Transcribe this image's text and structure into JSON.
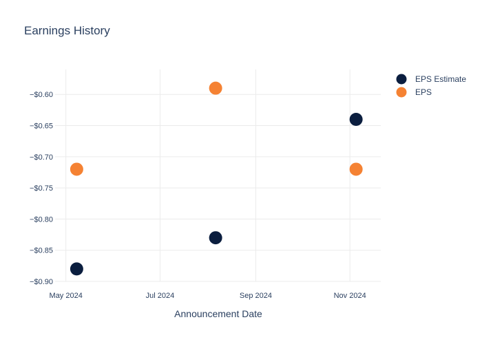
{
  "chart_data": {
    "type": "scatter",
    "title": "Earnings History",
    "xlabel": "Announcement Date",
    "ylabel": "",
    "x_ticks": [
      {
        "label": "May 2024",
        "date": "2024-05-01"
      },
      {
        "label": "Jul 2024",
        "date": "2024-07-01"
      },
      {
        "label": "Sep 2024",
        "date": "2024-09-01"
      },
      {
        "label": "Nov 2024",
        "date": "2024-11-01"
      }
    ],
    "xlim": [
      "2024-04-24",
      "2024-11-21"
    ],
    "y_ticks": [
      {
        "label": "−$0.60",
        "value": -0.6
      },
      {
        "label": "−$0.65",
        "value": -0.65
      },
      {
        "label": "−$0.70",
        "value": -0.7
      },
      {
        "label": "−$0.75",
        "value": -0.75
      },
      {
        "label": "−$0.80",
        "value": -0.8
      },
      {
        "label": "−$0.85",
        "value": -0.85
      },
      {
        "label": "−$0.90",
        "value": -0.9
      }
    ],
    "ylim": [
      -0.9,
      -0.56
    ],
    "grid": true,
    "legend_position": "top-right",
    "series": [
      {
        "name": "EPS Estimate",
        "color": "#0b1e3f",
        "points": [
          {
            "x": "2024-05-08",
            "y": -0.88
          },
          {
            "x": "2024-08-06",
            "y": -0.83
          },
          {
            "x": "2024-11-05",
            "y": -0.64
          }
        ]
      },
      {
        "name": "EPS",
        "color": "#f58233",
        "points": [
          {
            "x": "2024-05-08",
            "y": -0.72
          },
          {
            "x": "2024-08-06",
            "y": -0.59
          },
          {
            "x": "2024-11-05",
            "y": -0.72
          }
        ]
      }
    ]
  }
}
